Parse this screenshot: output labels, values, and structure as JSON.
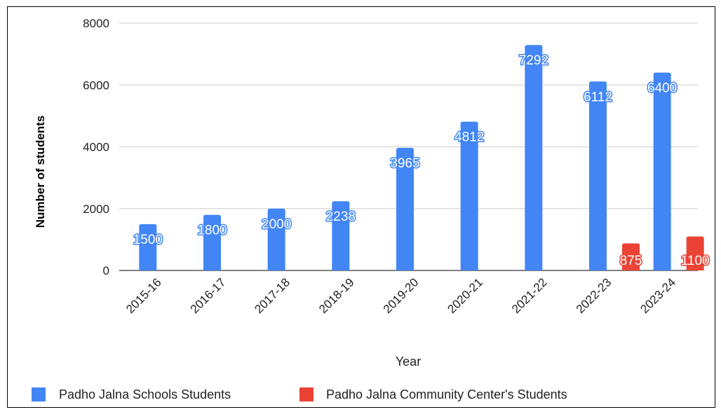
{
  "chart_data": {
    "type": "bar",
    "categories": [
      "2015-16",
      "2016-17",
      "2017-18",
      "2018-19",
      "2019-20",
      "2020-21",
      "2021-22",
      "2022-23",
      "2023-24"
    ],
    "series": [
      {
        "name": "Padho Jalna Schools Students",
        "color": "#4285f4",
        "values": [
          1500,
          1800,
          2000,
          2238,
          3965,
          4812,
          7292,
          6112,
          6400
        ],
        "labels": [
          "1500",
          "1800",
          "2000",
          "2238",
          "3965",
          "4812",
          "7292",
          "6112",
          "6400"
        ]
      },
      {
        "name": "Padho Jalna Community Center's Students",
        "color": "#ea4335",
        "values": [
          null,
          null,
          null,
          null,
          null,
          null,
          null,
          875,
          1100
        ],
        "labels": [
          "",
          "",
          "",
          "",
          "",
          "",
          "",
          "875",
          "1100"
        ]
      }
    ],
    "title": "",
    "xlabel": "Year",
    "ylabel": "Number of students",
    "ylim": [
      0,
      8000
    ],
    "yticks": [
      0,
      2000,
      4000,
      6000,
      8000
    ],
    "ytick_labels": [
      "0",
      "2000",
      "4000",
      "6000",
      "8000"
    ],
    "grid": true,
    "legend_position": "bottom-left"
  }
}
